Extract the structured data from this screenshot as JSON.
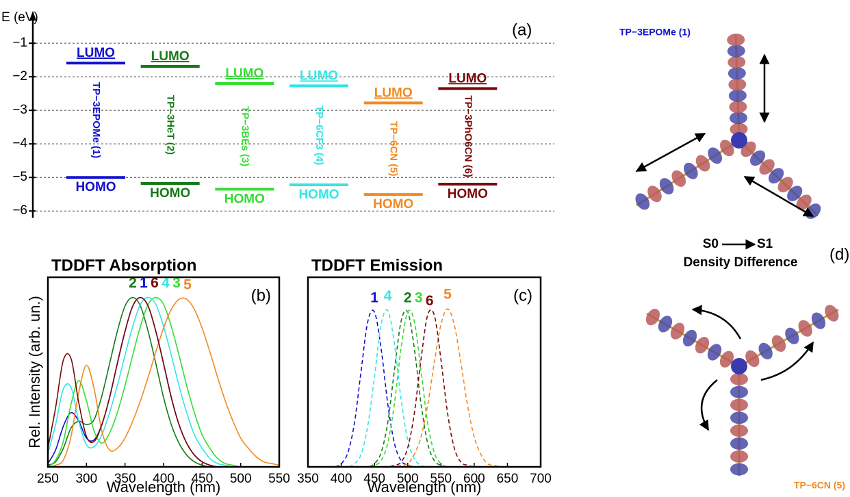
{
  "chart_data": [
    {
      "type": "levels",
      "ylabel": "E (eV)",
      "panel_label": "(a)",
      "lumo_label": "LUMO",
      "homo_label": "HOMO",
      "ylim": [
        -6.2,
        -0.65
      ],
      "yticks": [
        {
          "value": -1,
          "label": "−1"
        },
        {
          "value": -2,
          "label": "−2"
        },
        {
          "value": -3,
          "label": "−3"
        },
        {
          "value": -4,
          "label": "−4"
        },
        {
          "value": -5,
          "label": "−5"
        },
        {
          "value": -6,
          "label": "−6"
        }
      ],
      "grid": true,
      "series": [
        {
          "name": "TP−3EPOMe (1)",
          "color": "#1010d0",
          "lumo": -1.59,
          "homo": -5.0
        },
        {
          "name": "TP−3HeT (2)",
          "color": "#167a16",
          "lumo": -1.69,
          "homo": -5.18
        },
        {
          "name": "TP−3BEs (3)",
          "color": "#33dd33",
          "lumo": -2.2,
          "homo": -5.35
        },
        {
          "name": "TP−6CF3 (4)",
          "color": "#33e5e5",
          "lumo": -2.27,
          "homo": -5.22
        },
        {
          "name": "TP−6CN (5)",
          "color": "#f28a20",
          "lumo": -2.78,
          "homo": -5.51
        },
        {
          "name": "TP−3PhO6CN (6)",
          "color": "#7a0808",
          "lumo": -2.35,
          "homo": -5.2
        }
      ]
    },
    {
      "type": "line",
      "title": "TDDFT Absorption",
      "panel_label": "(b)",
      "xlabel": "Wavelength (nm)",
      "ylabel": "Rel. Intensity (arb. un.)",
      "xlim": [
        250,
        550
      ],
      "xticks": [
        250,
        300,
        350,
        400,
        450,
        500,
        550
      ],
      "ylim": [
        0,
        1.12
      ],
      "dashed": false,
      "x": [
        250,
        260,
        270,
        280,
        290,
        300,
        310,
        320,
        330,
        340,
        350,
        360,
        370,
        380,
        390,
        400,
        410,
        420,
        430,
        440,
        450,
        460,
        470,
        480,
        490,
        500,
        510,
        520,
        530,
        540,
        550
      ],
      "series": [
        {
          "name": "1",
          "color": "#1010d0",
          "values": [
            0.02,
            0.1,
            0.24,
            0.32,
            0.27,
            0.17,
            0.16,
            0.25,
            0.41,
            0.61,
            0.8,
            0.95,
            1,
            0.95,
            0.8,
            0.61,
            0.41,
            0.25,
            0.14,
            0.07,
            0.03,
            0.01,
            0,
            0,
            0,
            0,
            0,
            0,
            0,
            0,
            0
          ]
        },
        {
          "name": "2",
          "color": "#167a16",
          "values": [
            0.01,
            0.03,
            0.11,
            0.23,
            0.27,
            0.25,
            0.28,
            0.42,
            0.61,
            0.8,
            0.95,
            1,
            0.95,
            0.8,
            0.61,
            0.41,
            0.25,
            0.14,
            0.07,
            0.03,
            0.01,
            0,
            0,
            0,
            0,
            0,
            0,
            0,
            0,
            0,
            0
          ]
        },
        {
          "name": "3",
          "color": "#33dd33",
          "values": [
            0,
            0.04,
            0.15,
            0.37,
            0.51,
            0.39,
            0.21,
            0.14,
            0.2,
            0.32,
            0.48,
            0.66,
            0.83,
            0.96,
            1,
            0.96,
            0.83,
            0.66,
            0.48,
            0.32,
            0.19,
            0.11,
            0.05,
            0.02,
            0.01,
            0,
            0,
            0,
            0,
            0,
            0
          ]
        },
        {
          "name": "4",
          "color": "#33e5e5",
          "values": [
            0.08,
            0.25,
            0.46,
            0.47,
            0.27,
            0.13,
            0.12,
            0.19,
            0.32,
            0.48,
            0.66,
            0.83,
            0.96,
            1,
            0.96,
            0.83,
            0.66,
            0.48,
            0.32,
            0.19,
            0.11,
            0.05,
            0.02,
            0.01,
            0,
            0,
            0,
            0,
            0,
            0,
            0
          ]
        },
        {
          "name": "5",
          "color": "#f28a20",
          "values": [
            0,
            0.01,
            0.04,
            0.18,
            0.44,
            0.6,
            0.46,
            0.21,
            0.1,
            0.11,
            0.17,
            0.27,
            0.39,
            0.53,
            0.68,
            0.82,
            0.93,
            0.99,
            0.99,
            0.93,
            0.82,
            0.68,
            0.53,
            0.39,
            0.27,
            0.17,
            0.11,
            0.06,
            0.03,
            0.02,
            0.01
          ]
        },
        {
          "name": "6",
          "color": "#7a0808",
          "values": [
            0.11,
            0.35,
            0.63,
            0.64,
            0.38,
            0.18,
            0.15,
            0.25,
            0.41,
            0.61,
            0.8,
            0.95,
            1,
            0.95,
            0.8,
            0.61,
            0.41,
            0.25,
            0.14,
            0.07,
            0.03,
            0.01,
            0,
            0,
            0,
            0,
            0,
            0,
            0,
            0,
            0
          ]
        }
      ]
    },
    {
      "type": "line",
      "title": "TDDFT Emission",
      "panel_label": "(c)",
      "xlabel": "Wavelength (nm)",
      "xlim": [
        350,
        700
      ],
      "xticks": [
        350,
        400,
        450,
        500,
        550,
        600,
        650,
        700
      ],
      "ylim": [
        0,
        1.2
      ],
      "dashed": true,
      "x": [
        350,
        360,
        370,
        380,
        390,
        400,
        410,
        420,
        430,
        440,
        450,
        460,
        470,
        480,
        490,
        500,
        510,
        520,
        530,
        540,
        550,
        560,
        570,
        580,
        590,
        600,
        610,
        620,
        630,
        640,
        650,
        660,
        670,
        680,
        690,
        700
      ],
      "series": [
        {
          "name": "1",
          "color": "#1010d0",
          "values": [
            0,
            0,
            0,
            0,
            0,
            0.02,
            0.09,
            0.28,
            0.61,
            0.92,
            0.98,
            0.75,
            0.4,
            0.15,
            0.04,
            0.01,
            0,
            0,
            0,
            0,
            0,
            0,
            0,
            0,
            0,
            0,
            0,
            0,
            0,
            0,
            0,
            0,
            0,
            0,
            0,
            0
          ]
        },
        {
          "name": "2",
          "color": "#167a16",
          "values": [
            0,
            0,
            0,
            0,
            0,
            0,
            0,
            0,
            0,
            0,
            0.02,
            0.09,
            0.28,
            0.61,
            0.92,
            0.98,
            0.75,
            0.4,
            0.15,
            0.04,
            0.01,
            0,
            0,
            0,
            0,
            0,
            0,
            0,
            0,
            0,
            0,
            0,
            0,
            0,
            0,
            0
          ]
        },
        {
          "name": "3",
          "color": "#33dd33",
          "values": [
            0,
            0,
            0,
            0,
            0,
            0,
            0,
            0,
            0,
            0,
            0.01,
            0.04,
            0.15,
            0.4,
            0.75,
            0.98,
            0.92,
            0.61,
            0.28,
            0.09,
            0.02,
            0,
            0,
            0,
            0,
            0,
            0,
            0,
            0,
            0,
            0,
            0,
            0,
            0,
            0,
            0
          ]
        },
        {
          "name": "4",
          "color": "#33e5e5",
          "values": [
            0,
            0,
            0,
            0,
            0,
            0,
            0,
            0.02,
            0.08,
            0.26,
            0.57,
            0.9,
            0.99,
            0.78,
            0.43,
            0.17,
            0.05,
            0.01,
            0,
            0,
            0,
            0,
            0,
            0,
            0,
            0,
            0,
            0,
            0,
            0,
            0,
            0,
            0,
            0,
            0,
            0
          ]
        },
        {
          "name": "5",
          "color": "#f28a20",
          "values": [
            0,
            0,
            0,
            0,
            0,
            0,
            0,
            0,
            0,
            0,
            0,
            0,
            0,
            0,
            0.01,
            0.02,
            0.08,
            0.19,
            0.39,
            0.66,
            0.9,
            1,
            0.9,
            0.66,
            0.39,
            0.19,
            0.08,
            0.02,
            0.01,
            0,
            0,
            0,
            0,
            0,
            0,
            0
          ]
        },
        {
          "name": "6",
          "color": "#7a0808",
          "values": [
            0,
            0,
            0,
            0,
            0,
            0,
            0,
            0,
            0,
            0,
            0,
            0,
            0,
            0.01,
            0.03,
            0.12,
            0.34,
            0.68,
            0.96,
            0.96,
            0.68,
            0.34,
            0.12,
            0.03,
            0.01,
            0,
            0,
            0,
            0,
            0,
            0,
            0,
            0,
            0,
            0,
            0
          ]
        }
      ]
    }
  ],
  "panel_d": {
    "molecule_top": "TP−3EPOMe (1)",
    "molecule_bottom": "TP−6CN (5)",
    "transition_from": "S0",
    "transition_to": "S1",
    "caption": "Density Difference",
    "panel_label": "(d)"
  }
}
